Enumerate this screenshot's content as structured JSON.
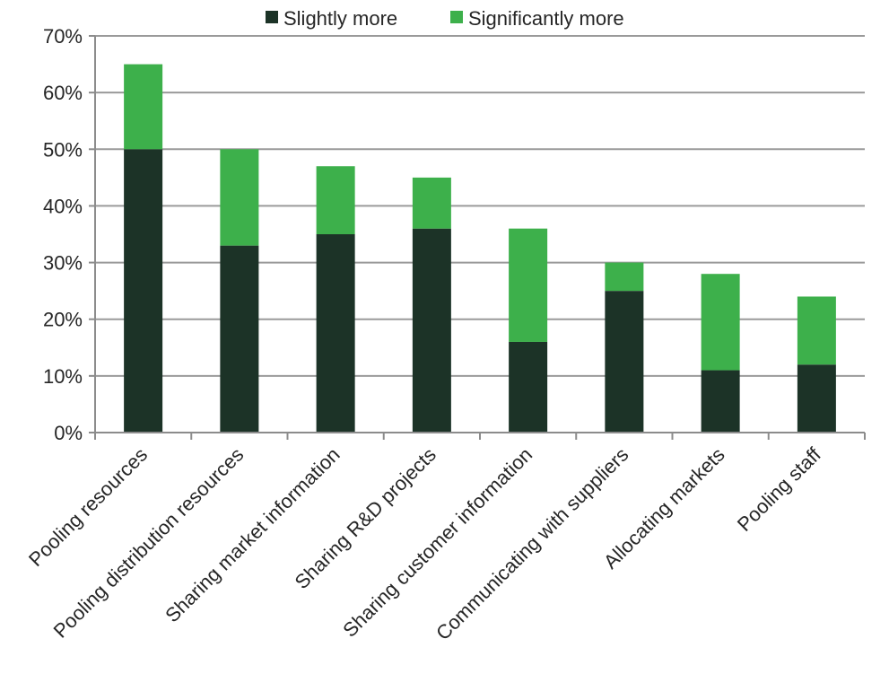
{
  "chart_data": {
    "type": "bar",
    "stacked": true,
    "title": "",
    "xlabel": "",
    "ylabel": "",
    "categories": [
      "Pooling resources",
      "Pooling distribution resources",
      "Sharing market information",
      "Sharing R&D projects",
      "Sharing customer information",
      "Communicating with suppliers",
      "Allocating markets",
      "Pooling staff"
    ],
    "series": [
      {
        "name": "Slightly more",
        "color": "#1c3327",
        "values": [
          50,
          33,
          35,
          36,
          16,
          25,
          11,
          12
        ]
      },
      {
        "name": "Significantly more",
        "color": "#3db04b",
        "values": [
          15,
          17,
          12,
          9,
          20,
          5,
          17,
          12
        ]
      }
    ],
    "ylim": [
      0,
      70
    ],
    "yticks": [
      0,
      10,
      20,
      30,
      40,
      50,
      60,
      70
    ],
    "ytick_labels": [
      "0%",
      "10%",
      "20%",
      "30%",
      "40%",
      "50%",
      "60%",
      "70%"
    ],
    "grid": true,
    "legend_position": "top"
  }
}
